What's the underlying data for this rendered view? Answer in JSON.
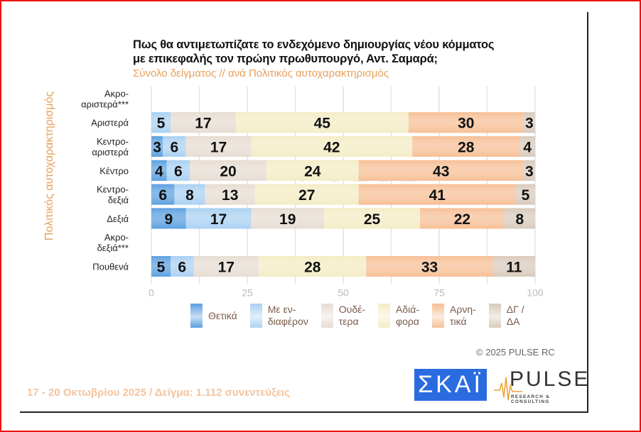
{
  "header": {
    "title_line1": "Πως θα αντιμετωπίζατε το ενδεχόμενο δημιουργίας νέου κόμματος",
    "title_line2": "με επικεφαλής τον πρώην πρωθυπουργό, Αντ. Σαμαρά;",
    "subtitle": "Σύνολο δείγματος // ανά Πολιτικός αυτοχαρακτηρισμός"
  },
  "axis": {
    "y_title": "Πολιτικός αυτοχαρακτηρισμός"
  },
  "footer": {
    "copyright": "©  2025  PULSE RC",
    "fieldwork": "17 - 20 Οκτωβρίου 2025  /  Δείγμα:  1.112 συνεντεύξεις",
    "logo_skai": "ΣΚΑΪ",
    "logo_pulse": "PULSE",
    "logo_pulse_sub": "RESEARCH & CONSULTING",
    "watermark": "PULSE"
  },
  "chart_data": {
    "type": "bar",
    "orientation": "horizontal",
    "stacked": true,
    "title": "Πως θα αντιμετωπίζατε το ενδεχόμενο δημιουργίας νέου κόμματος με επικεφαλής τον πρώην πρωθυπουργό, Αντ. Σαμαρά;",
    "subtitle": "Σύνολο δείγματος // ανά Πολιτικός αυτοχαρακτηρισμός",
    "xlabel": "",
    "ylabel": "Πολιτικός αυτοχαρακτηρισμός",
    "xlim": [
      0,
      100
    ],
    "xticks": [
      0,
      25,
      50,
      75,
      100
    ],
    "grid": true,
    "legend_position": "bottom",
    "categories": [
      [
        "Ακρο-",
        "αριστερά***"
      ],
      [
        "Αριστερά"
      ],
      [
        "Κεντρο-",
        "αριστερά"
      ],
      [
        "Κέντρο"
      ],
      [
        "Κεντρο-",
        "δεξιά"
      ],
      [
        "Δεξιά"
      ],
      [
        "Ακρο-",
        "δεξιά***"
      ],
      [
        "Πουθενά"
      ]
    ],
    "series": [
      {
        "name": "Θετικά",
        "legend": [
          "Θετικά"
        ],
        "color": "#5b9fe0",
        "values": [
          null,
          0,
          3,
          4,
          6,
          9,
          null,
          5
        ]
      },
      {
        "name": "Με ενδιαφέρον",
        "legend": [
          "Με εν-",
          "διαφέρον"
        ],
        "color": "#a9d0f2",
        "values": [
          null,
          5,
          6,
          6,
          8,
          17,
          null,
          6
        ]
      },
      {
        "name": "Ουδέτερα",
        "legend": [
          "Ουδέ-",
          "τερα"
        ],
        "color": "#e6dcd2",
        "values": [
          null,
          17,
          17,
          20,
          13,
          19,
          null,
          17
        ]
      },
      {
        "name": "Αδιάφορα",
        "legend": [
          "Αδιά-",
          "φορα"
        ],
        "color": "#f4ecc4",
        "values": [
          null,
          45,
          42,
          24,
          27,
          25,
          null,
          28
        ]
      },
      {
        "name": "Αρνητικά",
        "legend": [
          "Αρνη-",
          "τικά"
        ],
        "color": "#f6bf95",
        "values": [
          null,
          30,
          28,
          43,
          41,
          22,
          null,
          33
        ]
      },
      {
        "name": "ΔΓ / ΔΑ",
        "legend": [
          "ΔΓ /",
          "ΔΑ"
        ],
        "color": "#d8cabb",
        "values": [
          null,
          3,
          4,
          3,
          5,
          8,
          null,
          11
        ]
      }
    ]
  }
}
